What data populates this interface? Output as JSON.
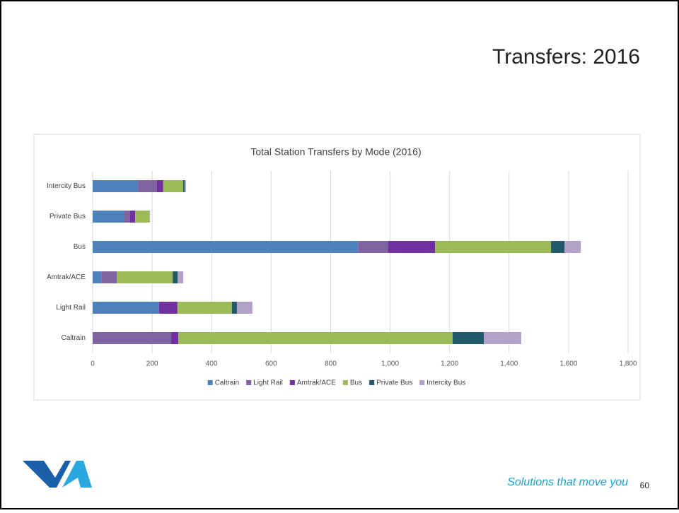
{
  "slide": {
    "title": "Transfers: 2016",
    "tagline": "Solutions that move you",
    "page_number": "60"
  },
  "chart_data": {
    "type": "stacked_barh",
    "title": "Total Station Transfers by Mode (2016)",
    "categories": [
      "Caltrain",
      "Light Rail",
      "Amtrak/ACE",
      "Bus",
      "Private Bus",
      "Intercity Bus"
    ],
    "series": [
      {
        "name": "Caltrain",
        "color": "#4f81bd",
        "values": [
          0,
          223,
          29,
          892,
          107,
          152
        ]
      },
      {
        "name": "Light Rail",
        "color": "#8064a2",
        "values": [
          264,
          0,
          52,
          100,
          19,
          64
        ]
      },
      {
        "name": "Amtrak/ACE",
        "color": "#7030a0",
        "values": [
          24,
          62,
          0,
          159,
          17,
          21
        ]
      },
      {
        "name": "Bus",
        "color": "#9bbb59",
        "values": [
          922,
          183,
          188,
          390,
          48,
          67
        ]
      },
      {
        "name": "Private Bus",
        "color": "#215968",
        "values": [
          105,
          17,
          17,
          45,
          0,
          5
        ]
      },
      {
        "name": "Intercity Bus",
        "color": "#b3a2c7",
        "values": [
          126,
          52,
          19,
          55,
          2,
          5
        ]
      }
    ],
    "xlim": [
      0,
      1800
    ],
    "xticks": [
      0,
      200,
      400,
      600,
      800,
      {
        "value": 1000,
        "label": "1,000"
      },
      {
        "value": 1200,
        "label": "1,200"
      },
      {
        "value": 1400,
        "label": "1,400"
      },
      {
        "value": 1600,
        "label": "1,600"
      },
      {
        "value": 1800,
        "label": "1,800"
      }
    ],
    "grid": true,
    "legend": "bottom"
  }
}
